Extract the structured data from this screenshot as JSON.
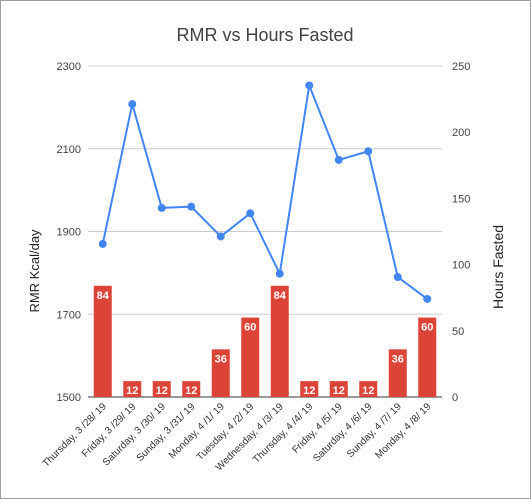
{
  "chart_data": {
    "type": "bar+line",
    "title": "RMR vs Hours Fasted",
    "xlabel": "",
    "ylabel_left": "RMR Kcal/day",
    "ylabel_right": "Hours Fasted",
    "categories": [
      "Thursday, 3 /28/ 19",
      "Friday, 3 /29/ 19",
      "Saturday, 3 /30/ 19",
      "Sunday, 3 /31/ 19",
      "Monday, 4 /1/ 19",
      "Tuesday, 4 /2/ 19",
      "Wednesday, 4 /3/ 19",
      "Thursday, 4 /4/ 19",
      "Friday, 4 /5/ 19",
      "Saturday, 4 /6/ 19",
      "Sunday, 4 /7/ 19",
      "Monday, 4 /8/ 19"
    ],
    "series": [
      {
        "axis": "right",
        "kind": "bar",
        "values": [
          84,
          12,
          12,
          12,
          36,
          60,
          84,
          12,
          12,
          12,
          36,
          60
        ],
        "color": "#db4437",
        "data_labels": true
      },
      {
        "axis": "left",
        "kind": "line",
        "values": [
          1870,
          2208,
          1957,
          1960,
          1888,
          1944,
          1798,
          2253,
          2073,
          2094,
          1790,
          1737
        ],
        "color": "#4285f4"
      }
    ],
    "ylim_left": [
      1500,
      2300
    ],
    "yticks_left": [
      "1500",
      "1700",
      "1900",
      "2100",
      "2300"
    ],
    "ylim_right": [
      0,
      250
    ],
    "yticks_right": [
      "0",
      "50",
      "100",
      "150",
      "200",
      "250"
    ],
    "grid": true,
    "legend": "none"
  }
}
